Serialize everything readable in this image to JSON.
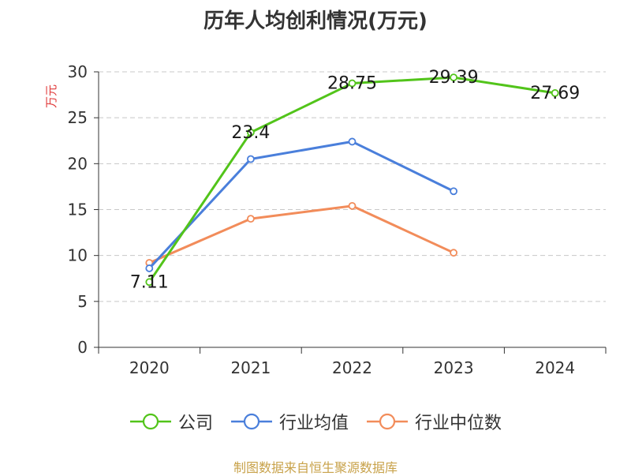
{
  "chart_data": {
    "type": "line",
    "title": "历年人均创利情况(万元)",
    "ylabel": "万元",
    "xlabel": "",
    "categories": [
      "2020",
      "2021",
      "2022",
      "2023",
      "2024"
    ],
    "ylim": [
      0,
      30
    ],
    "yticks": [
      0,
      5,
      10,
      15,
      20,
      25,
      30
    ],
    "grid": true,
    "legend_position": "bottom",
    "series": [
      {
        "name": "公司",
        "color": "#52c41a",
        "values": [
          7.11,
          23.4,
          28.75,
          29.39,
          27.69
        ],
        "data_labels": [
          "7.11",
          "23.4",
          "28.75",
          "29.39",
          "27.69"
        ]
      },
      {
        "name": "行业均值",
        "color": "#4a7fdb",
        "values": [
          8.6,
          20.5,
          22.4,
          17.0,
          null
        ]
      },
      {
        "name": "行业中位数",
        "color": "#f28c5a",
        "values": [
          9.2,
          14.0,
          15.4,
          10.3,
          null
        ]
      }
    ]
  },
  "footer": {
    "source": "制图数据来自恒生聚源数据库"
  }
}
